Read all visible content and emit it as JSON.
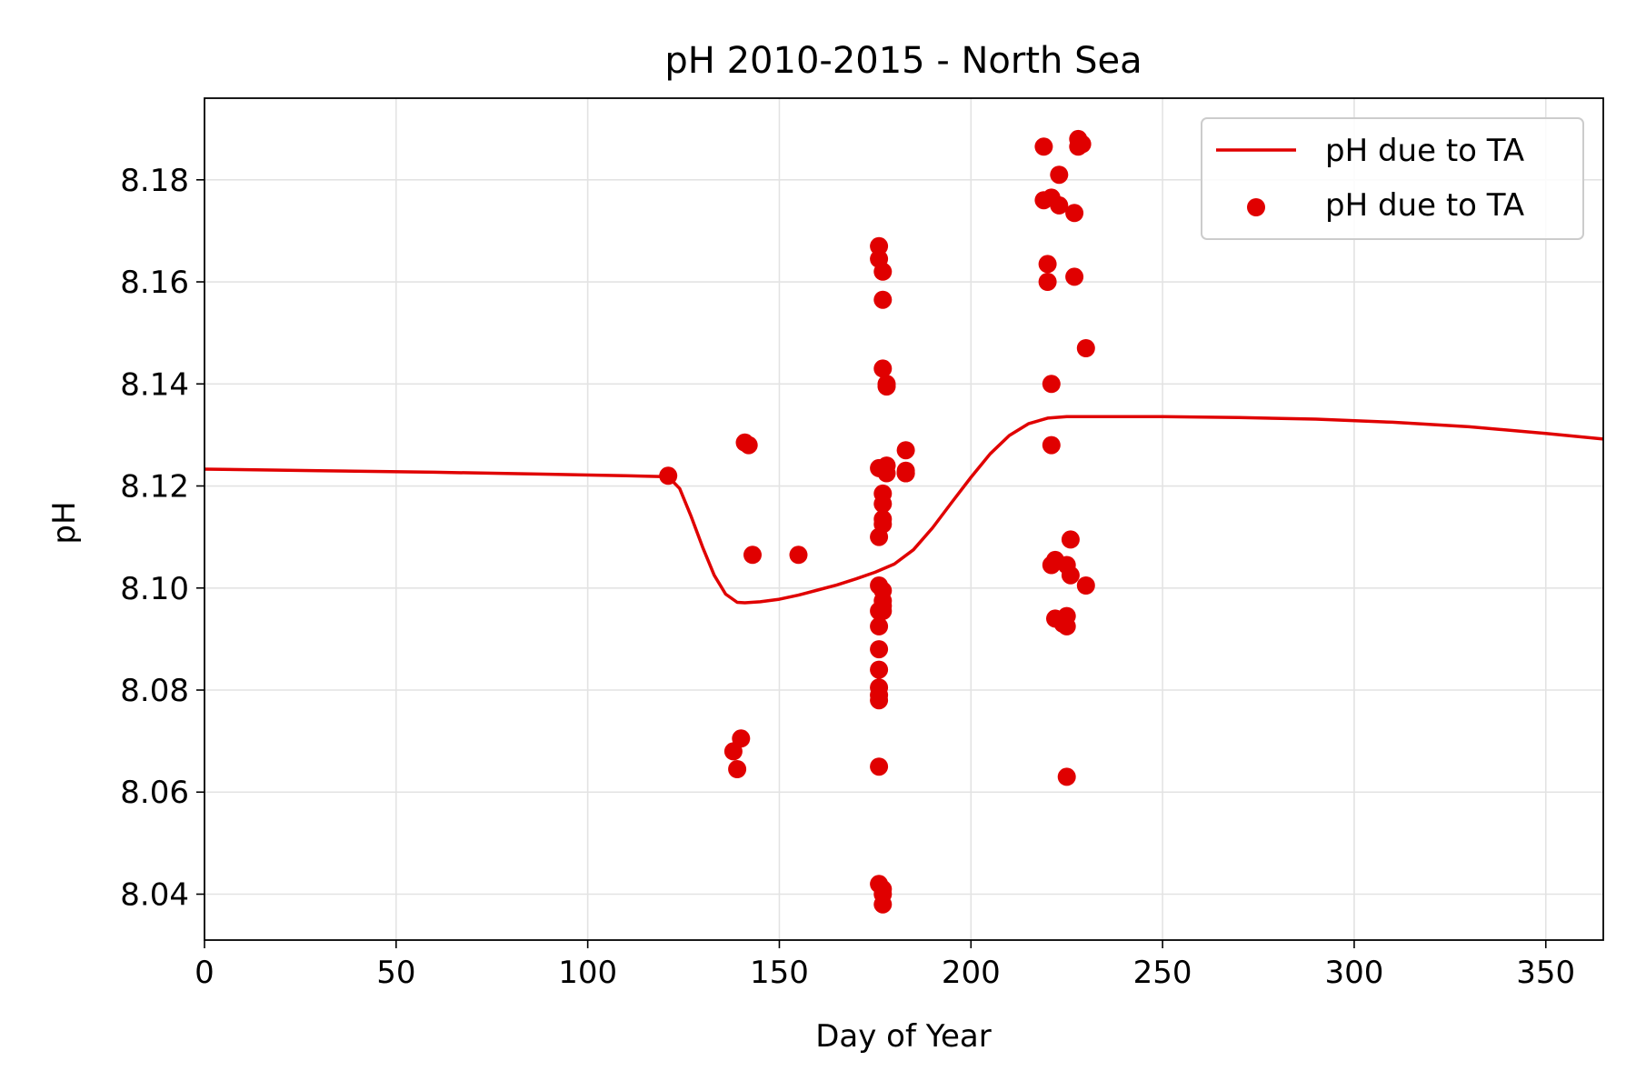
{
  "chart_data": {
    "type": "scatter",
    "title": "pH 2010-2015 - North Sea",
    "xlabel": "Day of Year",
    "ylabel": "pH",
    "xlim": [
      0,
      365
    ],
    "ylim": [
      8.031,
      8.196
    ],
    "xticks": [
      0,
      50,
      100,
      150,
      200,
      250,
      300,
      350
    ],
    "yticks": [
      8.04,
      8.06,
      8.08,
      8.1,
      8.12,
      8.14,
      8.16,
      8.18
    ],
    "grid": true,
    "legend_position": "upper right",
    "color": "#e00000",
    "series": [
      {
        "name": "pH due to TA",
        "kind": "line",
        "x": [
          0,
          30,
          60,
          90,
          110,
          121,
          124,
          127,
          130,
          133,
          136,
          139,
          141,
          145,
          150,
          155,
          160,
          165,
          170,
          175,
          180,
          185,
          190,
          195,
          200,
          205,
          210,
          215,
          220,
          225,
          230,
          250,
          270,
          290,
          310,
          330,
          350,
          365
        ],
        "y": [
          8.1233,
          8.123,
          8.1227,
          8.1223,
          8.122,
          8.1218,
          8.1195,
          8.114,
          8.108,
          8.1025,
          8.0988,
          8.0972,
          8.0971,
          8.0973,
          8.0978,
          8.0986,
          8.0996,
          8.1006,
          8.1018,
          8.1031,
          8.1047,
          8.1075,
          8.1118,
          8.1168,
          8.1217,
          8.1263,
          8.1299,
          8.1322,
          8.1333,
          8.1336,
          8.1336,
          8.1336,
          8.1334,
          8.1331,
          8.1325,
          8.1316,
          8.1303,
          8.1292
        ]
      },
      {
        "name": "pH due to TA",
        "kind": "scatter",
        "x": [
          121,
          138,
          139,
          140,
          141,
          142,
          143,
          155,
          176,
          176,
          176,
          176,
          176,
          176,
          176,
          176,
          176,
          176,
          176,
          176,
          176,
          176,
          177,
          177,
          177,
          177,
          177,
          177,
          177,
          177,
          177,
          177,
          177,
          177,
          177,
          177,
          178,
          178,
          178,
          178,
          183,
          183,
          183,
          183,
          219,
          219,
          220,
          220,
          221,
          221,
          221,
          221,
          222,
          222,
          223,
          223,
          224,
          225,
          225,
          225,
          225,
          226,
          226,
          227,
          227,
          228,
          228,
          229,
          230,
          230
        ],
        "y": [
          8.122,
          8.068,
          8.0645,
          8.0705,
          8.1285,
          8.128,
          8.1065,
          8.1065,
          8.167,
          8.1645,
          8.1235,
          8.11,
          8.1005,
          8.0955,
          8.0925,
          8.088,
          8.084,
          8.0805,
          8.079,
          8.078,
          8.065,
          8.042,
          8.041,
          8.04,
          8.038,
          8.162,
          8.1185,
          8.1165,
          8.1125,
          8.1135,
          8.0995,
          8.0975,
          8.0965,
          8.0955,
          8.143,
          8.1565,
          8.124,
          8.1225,
          8.1395,
          8.14,
          8.127,
          8.123,
          8.1225,
          8.1225,
          8.1865,
          8.176,
          8.1635,
          8.16,
          8.1765,
          8.14,
          8.128,
          8.1045,
          8.1055,
          8.094,
          8.181,
          8.175,
          8.093,
          8.0945,
          8.0925,
          8.063,
          8.1045,
          8.1025,
          8.1095,
          8.1735,
          8.161,
          8.188,
          8.1865,
          8.187,
          8.147,
          8.1005
        ]
      }
    ]
  }
}
